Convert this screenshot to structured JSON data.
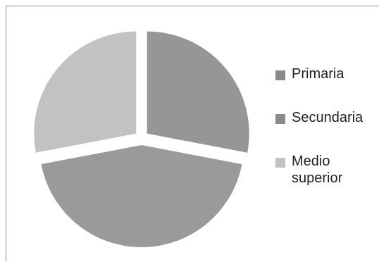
{
  "chart_data": {
    "type": "pie",
    "title": "",
    "slices": [
      {
        "label": "Primaria",
        "value": 28,
        "color": "#969696"
      },
      {
        "label": "Secundaria",
        "value": 44,
        "color": "#9a9a9a"
      },
      {
        "label": "Medio superior",
        "value": 28,
        "color": "#c2c2c2"
      }
    ],
    "legend": {
      "position": "right",
      "items": [
        {
          "label": "Primaria",
          "color": "#8a8a8a"
        },
        {
          "label": "Secundaria",
          "color": "#8a8a8a"
        },
        {
          "label": "Medio superior",
          "color": "#c2c2c2"
        }
      ]
    },
    "exploded": true
  }
}
